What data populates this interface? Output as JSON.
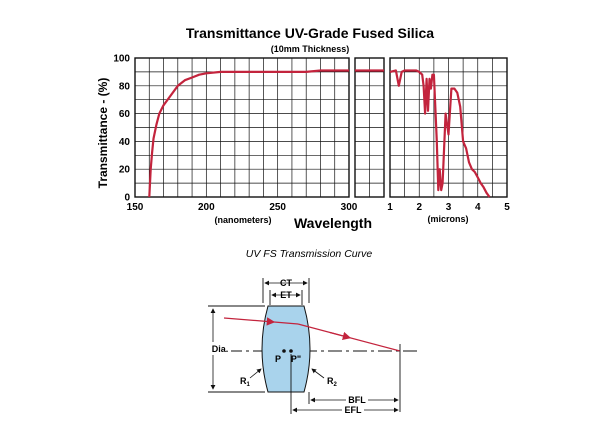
{
  "chart_data": {
    "type": "line",
    "title": "Transmittance UV-Grade Fused Silica",
    "subtitle": "(10mm Thickness)",
    "ylabel": "Transmittance - (%)",
    "xlabel": "Wavelength",
    "ylim": [
      0,
      100
    ],
    "y_ticks": [
      "0",
      "20",
      "40",
      "60",
      "80",
      "100"
    ],
    "grid": true,
    "line_color": "#c3243d",
    "panels": [
      {
        "name": "nanometers",
        "unit_label": "(nanometers)",
        "xlim": [
          150,
          300
        ],
        "x_ticks": [
          "150",
          "200",
          "250",
          "300"
        ],
        "x": [
          160,
          161,
          162,
          163,
          165,
          167,
          170,
          175,
          180,
          185,
          190,
          195,
          200,
          210,
          220,
          230,
          240,
          250,
          260,
          270,
          280,
          290,
          300
        ],
        "y": [
          0,
          20,
          32,
          42,
          52,
          60,
          66,
          73,
          80,
          84,
          86,
          88,
          89,
          90,
          90,
          90,
          90,
          90,
          90,
          90,
          91,
          91,
          91
        ]
      },
      {
        "name": "middle",
        "xlim": [
          0,
          1
        ],
        "x": [
          0,
          0.2,
          0.4,
          0.6,
          0.8,
          1
        ],
        "y": [
          91,
          91,
          91,
          91,
          91,
          91
        ]
      },
      {
        "name": "microns",
        "unit_label": "(microns)",
        "xlim": [
          1,
          5
        ],
        "x_ticks": [
          "1",
          "2",
          "3",
          "4",
          "5"
        ],
        "x": [
          1.0,
          1.2,
          1.3,
          1.4,
          1.5,
          1.7,
          1.9,
          2.0,
          2.1,
          2.15,
          2.2,
          2.25,
          2.3,
          2.35,
          2.4,
          2.45,
          2.5,
          2.6,
          2.65,
          2.7,
          2.75,
          2.8,
          2.9,
          3.0,
          3.1,
          3.2,
          3.3,
          3.4,
          3.5,
          3.6,
          3.7,
          3.8,
          3.9,
          4.0,
          4.1,
          4.2,
          4.3,
          4.4
        ],
        "y": [
          90,
          91,
          80,
          90,
          91,
          91,
          91,
          90,
          88,
          80,
          60,
          85,
          62,
          85,
          78,
          88,
          88,
          40,
          5,
          20,
          5,
          10,
          60,
          45,
          78,
          78,
          75,
          65,
          40,
          35,
          25,
          20,
          18,
          14,
          10,
          7,
          3,
          0
        ]
      }
    ]
  },
  "caption": "UV FS Transmission Curve",
  "diagram": {
    "labels": {
      "ct": "CT",
      "et": "ET",
      "dia": "Dia.",
      "p": "P",
      "pp": "P\"",
      "r1": "R",
      "r1_sub": "1",
      "r2": "R",
      "r2_sub": "2",
      "bfl": "BFL",
      "efl": "EFL"
    },
    "lens_color": "#a9d3ec",
    "ray_color": "#c3243d"
  }
}
